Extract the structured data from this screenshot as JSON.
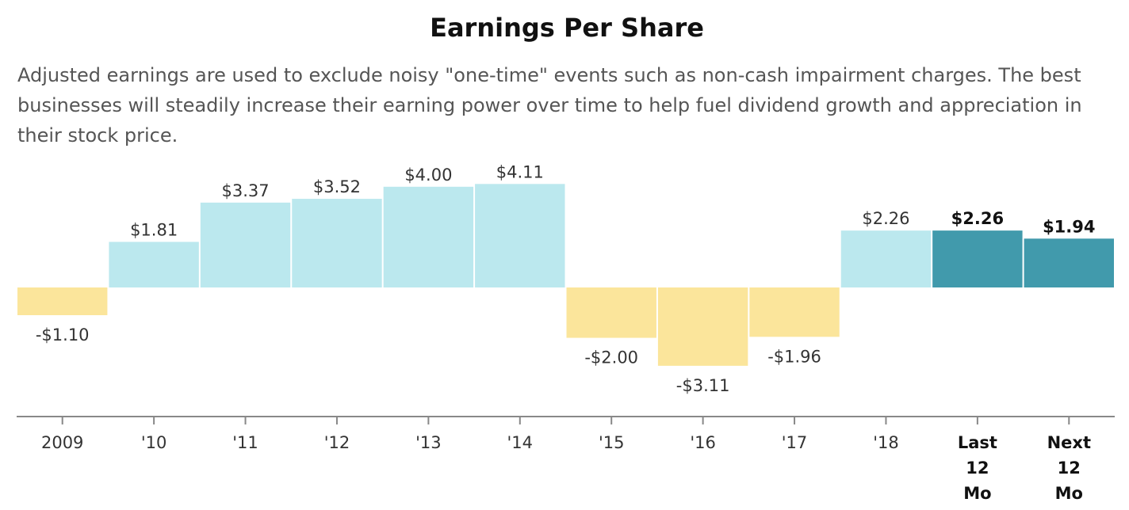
{
  "chart_data": {
    "type": "bar",
    "title": "Earnings Per Share",
    "subtitle": "Adjusted earnings are used to exclude noisy \"one-time\" events such as non-cash impairment charges. The best businesses will steadily increase their earning power over time to help fuel dividend growth and appreciation in their stock price.",
    "categories": [
      "2009",
      "'10",
      "'11",
      "'12",
      "'13",
      "'14",
      "'15",
      "'16",
      "'17",
      "'18",
      "Last 12 Mo",
      "Next 12 Mo"
    ],
    "values": [
      -1.1,
      1.81,
      3.37,
      3.52,
      4.0,
      4.11,
      -2.0,
      -3.11,
      -1.96,
      2.26,
      2.26,
      1.94
    ],
    "value_labels": [
      "-$1.10",
      "$1.81",
      "$3.37",
      "$3.52",
      "$4.00",
      "$4.11",
      "-$2.00",
      "-$3.11",
      "-$1.96",
      "$2.26",
      "$2.26",
      "$1.94"
    ],
    "highlighted": [
      false,
      false,
      false,
      false,
      false,
      false,
      false,
      false,
      false,
      false,
      true,
      true
    ],
    "xlabel": "",
    "ylabel": "",
    "grid": false,
    "colors": {
      "positive": "#bbe8ee",
      "negative": "#fbe59b",
      "highlight": "#419aac",
      "axis": "#888888"
    }
  }
}
